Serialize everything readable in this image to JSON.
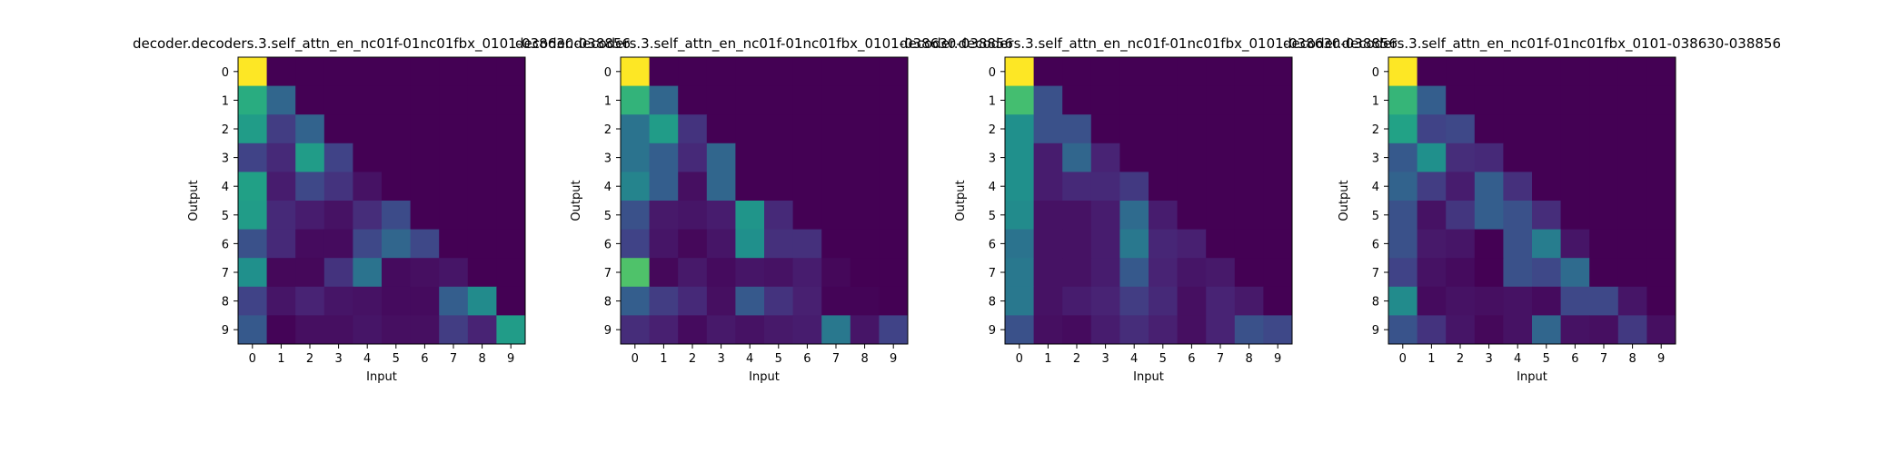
{
  "chart_data": [
    {
      "type": "heatmap",
      "title": "decoder.decoders.3.self_attn_en_nc01f-01nc01fbx_0101-038630-038856",
      "xlabel": "Input",
      "ylabel": "Output",
      "x_ticks": [
        "0",
        "1",
        "2",
        "3",
        "4",
        "5",
        "6",
        "7",
        "8",
        "9"
      ],
      "y_ticks": [
        "0",
        "1",
        "2",
        "3",
        "4",
        "5",
        "6",
        "7",
        "8",
        "9"
      ],
      "colormap": "viridis",
      "values": [
        [
          1.0,
          0.0,
          0.0,
          0.0,
          0.0,
          0.0,
          0.0,
          0.0,
          0.0,
          0.0
        ],
        [
          0.62,
          0.33,
          0.0,
          0.0,
          0.0,
          0.0,
          0.0,
          0.0,
          0.0,
          0.0
        ],
        [
          0.55,
          0.18,
          0.32,
          0.0,
          0.0,
          0.0,
          0.0,
          0.0,
          0.0,
          0.0
        ],
        [
          0.2,
          0.12,
          0.55,
          0.2,
          0.0,
          0.0,
          0.0,
          0.0,
          0.0,
          0.0
        ],
        [
          0.57,
          0.08,
          0.22,
          0.15,
          0.05,
          0.0,
          0.0,
          0.0,
          0.0,
          0.0
        ],
        [
          0.55,
          0.12,
          0.08,
          0.05,
          0.13,
          0.23,
          0.0,
          0.0,
          0.0,
          0.0
        ],
        [
          0.25,
          0.12,
          0.03,
          0.03,
          0.22,
          0.33,
          0.22,
          0.0,
          0.0,
          0.0
        ],
        [
          0.5,
          0.02,
          0.02,
          0.15,
          0.38,
          0.03,
          0.04,
          0.06,
          0.0,
          0.0
        ],
        [
          0.2,
          0.06,
          0.1,
          0.06,
          0.05,
          0.03,
          0.03,
          0.3,
          0.48,
          0.0
        ],
        [
          0.28,
          0.01,
          0.04,
          0.04,
          0.06,
          0.04,
          0.04,
          0.18,
          0.1,
          0.55
        ]
      ]
    },
    {
      "type": "heatmap",
      "title": "decoder.decoders.3.self_attn_en_nc01f-01nc01fbx_0101-038630-038856",
      "xlabel": "Input",
      "ylabel": "Output",
      "x_ticks": [
        "0",
        "1",
        "2",
        "3",
        "4",
        "5",
        "6",
        "7",
        "8",
        "9"
      ],
      "y_ticks": [
        "0",
        "1",
        "2",
        "3",
        "4",
        "5",
        "6",
        "7",
        "8",
        "9"
      ],
      "colormap": "viridis",
      "values": [
        [
          1.0,
          0.0,
          0.0,
          0.0,
          0.0,
          0.0,
          0.0,
          0.0,
          0.0,
          0.0
        ],
        [
          0.65,
          0.33,
          0.0,
          0.0,
          0.0,
          0.0,
          0.0,
          0.0,
          0.0,
          0.0
        ],
        [
          0.38,
          0.55,
          0.15,
          0.0,
          0.0,
          0.0,
          0.0,
          0.0,
          0.0,
          0.0
        ],
        [
          0.38,
          0.3,
          0.12,
          0.33,
          0.0,
          0.0,
          0.0,
          0.0,
          0.0,
          0.0
        ],
        [
          0.45,
          0.3,
          0.04,
          0.33,
          0.0,
          0.0,
          0.0,
          0.0,
          0.0,
          0.0
        ],
        [
          0.25,
          0.07,
          0.06,
          0.08,
          0.52,
          0.12,
          0.0,
          0.0,
          0.0,
          0.0
        ],
        [
          0.2,
          0.06,
          0.02,
          0.06,
          0.5,
          0.14,
          0.14,
          0.0,
          0.0,
          0.0
        ],
        [
          0.72,
          0.02,
          0.07,
          0.03,
          0.06,
          0.05,
          0.08,
          0.02,
          0.0,
          0.0
        ],
        [
          0.3,
          0.18,
          0.12,
          0.04,
          0.28,
          0.15,
          0.09,
          0.01,
          0.01,
          0.0
        ],
        [
          0.13,
          0.09,
          0.03,
          0.07,
          0.05,
          0.07,
          0.08,
          0.4,
          0.06,
          0.2
        ]
      ]
    },
    {
      "type": "heatmap",
      "title": "decoder.decoders.3.self_attn_en_nc01f-01nc01fbx_0101-038630-038856",
      "xlabel": "Input",
      "ylabel": "Output",
      "x_ticks": [
        "0",
        "1",
        "2",
        "3",
        "4",
        "5",
        "6",
        "7",
        "8",
        "9"
      ],
      "y_ticks": [
        "0",
        "1",
        "2",
        "3",
        "4",
        "5",
        "6",
        "7",
        "8",
        "9"
      ],
      "colormap": "viridis",
      "values": [
        [
          1.0,
          0.0,
          0.0,
          0.0,
          0.0,
          0.0,
          0.0,
          0.0,
          0.0,
          0.0
        ],
        [
          0.7,
          0.25,
          0.0,
          0.0,
          0.0,
          0.0,
          0.0,
          0.0,
          0.0,
          0.0
        ],
        [
          0.5,
          0.25,
          0.25,
          0.0,
          0.0,
          0.0,
          0.0,
          0.0,
          0.0,
          0.0
        ],
        [
          0.5,
          0.08,
          0.33,
          0.1,
          0.0,
          0.0,
          0.0,
          0.0,
          0.0,
          0.0
        ],
        [
          0.5,
          0.08,
          0.12,
          0.12,
          0.17,
          0.0,
          0.0,
          0.0,
          0.0,
          0.0
        ],
        [
          0.48,
          0.05,
          0.05,
          0.08,
          0.35,
          0.08,
          0.0,
          0.0,
          0.0,
          0.0
        ],
        [
          0.38,
          0.05,
          0.05,
          0.08,
          0.4,
          0.11,
          0.09,
          0.0,
          0.0,
          0.0
        ],
        [
          0.4,
          0.05,
          0.05,
          0.08,
          0.28,
          0.1,
          0.06,
          0.07,
          0.0,
          0.0
        ],
        [
          0.4,
          0.05,
          0.08,
          0.1,
          0.18,
          0.12,
          0.04,
          0.1,
          0.07,
          0.0
        ],
        [
          0.25,
          0.04,
          0.03,
          0.08,
          0.13,
          0.09,
          0.04,
          0.1,
          0.25,
          0.22
        ]
      ]
    },
    {
      "type": "heatmap",
      "title": "decoder.decoders.3.self_attn_en_nc01f-01nc01fbx_0101-038630-038856",
      "xlabel": "Input",
      "ylabel": "Output",
      "x_ticks": [
        "0",
        "1",
        "2",
        "3",
        "4",
        "5",
        "6",
        "7",
        "8",
        "9"
      ],
      "y_ticks": [
        "0",
        "1",
        "2",
        "3",
        "4",
        "5",
        "6",
        "7",
        "8",
        "9"
      ],
      "colormap": "viridis",
      "values": [
        [
          1.0,
          0.0,
          0.0,
          0.0,
          0.0,
          0.0,
          0.0,
          0.0,
          0.0,
          0.0
        ],
        [
          0.66,
          0.3,
          0.0,
          0.0,
          0.0,
          0.0,
          0.0,
          0.0,
          0.0,
          0.0
        ],
        [
          0.58,
          0.2,
          0.22,
          0.0,
          0.0,
          0.0,
          0.0,
          0.0,
          0.0,
          0.0
        ],
        [
          0.28,
          0.5,
          0.13,
          0.12,
          0.0,
          0.0,
          0.0,
          0.0,
          0.0,
          0.0
        ],
        [
          0.32,
          0.18,
          0.08,
          0.3,
          0.14,
          0.0,
          0.0,
          0.0,
          0.0,
          0.0
        ],
        [
          0.25,
          0.05,
          0.16,
          0.3,
          0.25,
          0.13,
          0.0,
          0.0,
          0.0,
          0.0
        ],
        [
          0.25,
          0.07,
          0.06,
          0.0,
          0.25,
          0.42,
          0.06,
          0.0,
          0.0,
          0.0
        ],
        [
          0.2,
          0.05,
          0.03,
          0.0,
          0.25,
          0.22,
          0.35,
          0.0,
          0.0,
          0.0
        ],
        [
          0.48,
          0.03,
          0.05,
          0.04,
          0.05,
          0.03,
          0.22,
          0.22,
          0.06,
          0.0
        ],
        [
          0.26,
          0.15,
          0.06,
          0.02,
          0.05,
          0.33,
          0.05,
          0.04,
          0.17,
          0.04
        ]
      ]
    }
  ]
}
